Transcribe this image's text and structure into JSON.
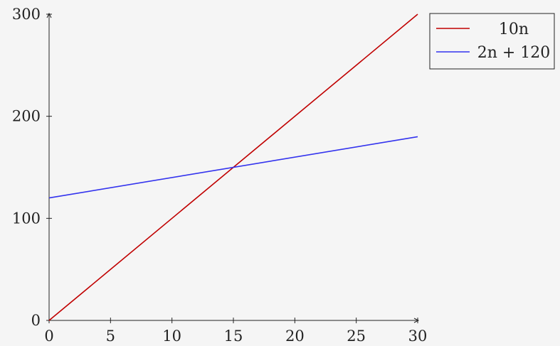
{
  "chart_data": {
    "type": "line",
    "xlim": [
      0,
      30
    ],
    "ylim": [
      0,
      300
    ],
    "x_ticks": [
      0,
      5,
      10,
      15,
      20,
      25,
      30
    ],
    "y_ticks": [
      0,
      100,
      200,
      300
    ],
    "x_tick_labels": [
      "0",
      "5",
      "10",
      "15",
      "20",
      "25",
      "30"
    ],
    "y_tick_labels": [
      "0",
      "100",
      "200",
      "300"
    ],
    "grid": false,
    "legend_position": "top-right outside",
    "series": [
      {
        "name": "10n",
        "color": "#c00000",
        "x": [
          0,
          30
        ],
        "y": [
          0,
          300
        ]
      },
      {
        "name": "2n + 120",
        "color": "#3333ee",
        "x": [
          0,
          30
        ],
        "y": [
          120,
          180
        ]
      }
    ]
  }
}
